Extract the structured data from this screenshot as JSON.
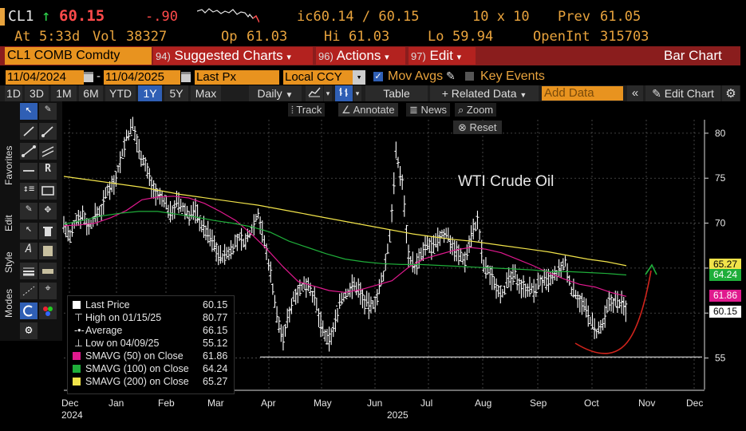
{
  "quote": {
    "ticker": "CL1",
    "arrow": "↑",
    "last": "60.15",
    "change": "-.90",
    "ic_label": "ic60.14 / 60.15",
    "size": "10 x 10",
    "prev_label": "Prev",
    "prev": "61.05",
    "at_label": "At",
    "at": "5:33d",
    "vol_label": "Vol",
    "vol": "38327",
    "op_label": "Op",
    "op": "61.03",
    "hi_label": "Hi",
    "hi": "61.03",
    "lo_label": "Lo",
    "lo": "59.94",
    "oi_label": "OpenInt",
    "oi": "315703"
  },
  "header": {
    "security": "CL1 COMB Comdty",
    "menus": [
      {
        "num": "94)",
        "label": "Suggested Charts"
      },
      {
        "num": "96)",
        "label": "Actions"
      },
      {
        "num": "97)",
        "label": "Edit"
      }
    ],
    "title": "Bar Chart"
  },
  "fields": {
    "start_date": "11/04/2024",
    "end_date": "11/04/2025",
    "field": "Last Px",
    "currency": "Local CCY",
    "mov_avgs": "Mov Avgs",
    "key_events": "Key Events"
  },
  "toolbar": {
    "periods": [
      "1D",
      "3D",
      "1M",
      "6M",
      "YTD",
      "1Y",
      "5Y",
      "Max"
    ],
    "selected_period": "1Y",
    "frequency": "Daily",
    "table": "Table",
    "related": "Related Data",
    "add_data_placeholder": "Add Data",
    "edit_chart": "Edit Chart"
  },
  "side_labels": [
    "Favorites",
    "Edit",
    "Style",
    "Modes"
  ],
  "chart_tools": {
    "track": "Track",
    "annotate": "Annotate",
    "news": "News",
    "zoom": "Zoom",
    "reset": "Reset"
  },
  "annotation_text": "WTI Crude Oil",
  "legend": [
    {
      "swatch": "#ffffff",
      "label": "Last Price",
      "value": "60.15"
    },
    {
      "swatch": "",
      "label": "High on 01/15/25",
      "value": "80.77"
    },
    {
      "swatch": "",
      "label": "Average",
      "value": "66.15"
    },
    {
      "swatch": "",
      "label": "Low on 04/09/25",
      "value": "55.12"
    },
    {
      "swatch": "#e0198e",
      "label": "SMAVG (50)  on Close",
      "value": "61.86"
    },
    {
      "swatch": "#1fae3a",
      "label": "SMAVG (100)  on Close",
      "value": "64.24"
    },
    {
      "swatch": "#f1e34a",
      "label": "SMAVG (200)  on Close",
      "value": "65.27"
    }
  ],
  "price_tags": [
    {
      "value": "65.27",
      "color": "#f1e34a",
      "text_color": "#000000"
    },
    {
      "value": "64.24",
      "color": "#1fae3a",
      "text_color": "#ffffff"
    },
    {
      "value": "61.86",
      "color": "#e0198e",
      "text_color": "#ffffff"
    },
    {
      "value": "60.15",
      "color": "#ffffff",
      "text_color": "#000000"
    }
  ],
  "chart_data": {
    "type": "line",
    "title": "WTI Crude Oil",
    "x_labels": [
      "Dec",
      "Jan",
      "Feb",
      "Mar",
      "Apr",
      "May",
      "Jun",
      "Jul",
      "Aug",
      "Sep",
      "Oct",
      "Nov",
      "Dec"
    ],
    "x_year_labels": [
      "2024",
      "2025"
    ],
    "y_ticks": [
      55,
      60,
      65,
      70,
      75,
      80
    ],
    "ylim": [
      51.5,
      81.5
    ],
    "grid": true,
    "low_line": 55.12,
    "series": [
      {
        "name": "Last Price",
        "color": "#ffffff",
        "values": [
          69.9,
          68.2,
          70.5,
          71.0,
          69.5,
          70.8,
          71.5,
          73.8,
          74.5,
          76.9,
          79.5,
          80.77,
          78.2,
          76.5,
          74.3,
          73.0,
          72.5,
          71.0,
          72.3,
          71.6,
          70.9,
          71.4,
          69.7,
          68.8,
          67.6,
          66.2,
          66.5,
          67.4,
          68.3,
          67.8,
          69.5,
          71.2,
          67.8,
          64.5,
          59.6,
          57.1,
          60.2,
          62.4,
          62.8,
          63.4,
          61.5,
          58.7,
          56.8,
          58.0,
          61.3,
          62.0,
          63.0,
          62.8,
          61.2,
          60.6,
          61.8,
          64.2,
          68.5,
          77.6,
          74.5,
          66.5,
          65.0,
          66.3,
          67.6,
          67.2,
          68.5,
          68.9,
          67.6,
          66.5,
          65.9,
          68.7,
          70.2,
          65.1,
          64.4,
          63.0,
          62.3,
          63.6,
          64.1,
          63.0,
          62.8,
          62.4,
          63.6,
          63.4,
          63.8,
          64.6,
          65.5,
          62.6,
          61.9,
          60.7,
          59.2,
          57.7,
          58.5,
          61.2,
          61.3,
          61.0,
          60.15
        ]
      },
      {
        "name": "SMAVG (50)",
        "color": "#e0198e",
        "values": [
          69.7,
          69.8,
          70.0,
          70.6,
          71.4,
          72.6,
          72.9,
          73.0,
          72.8,
          72.2,
          71.3,
          70.3,
          68.8,
          67.1,
          65.2,
          63.5,
          63.0,
          62.5,
          62.3,
          62.6,
          63.1,
          63.6,
          65.0,
          66.0,
          66.5,
          67.0,
          67.3,
          67.1,
          66.7,
          66.0,
          65.3,
          64.5,
          63.8,
          63.2,
          62.9,
          62.3,
          61.86
        ]
      },
      {
        "name": "SMAVG (100)",
        "color": "#1fae3a",
        "values": [
          69.9,
          70.3,
          70.8,
          71.1,
          71.3,
          71.3,
          71.0,
          70.7,
          70.3,
          70.0,
          69.6,
          69.0,
          68.0,
          67.3,
          66.6,
          66.0,
          65.7,
          65.5,
          65.4,
          65.4,
          65.3,
          65.2,
          65.1,
          65.0,
          64.9,
          64.8,
          64.6,
          64.6,
          64.5,
          64.4,
          64.24
        ]
      },
      {
        "name": "SMAVG (200)",
        "color": "#f1e34a",
        "values": [
          75.2,
          74.9,
          74.6,
          74.3,
          74.0,
          73.6,
          73.2,
          72.9,
          72.6,
          72.3,
          72.0,
          71.6,
          71.2,
          70.8,
          70.4,
          70.0,
          69.6,
          69.2,
          68.8,
          68.5,
          68.2,
          68.0,
          67.7,
          67.4,
          67.1,
          66.8,
          66.4,
          66.0,
          65.7,
          65.27
        ]
      }
    ]
  }
}
